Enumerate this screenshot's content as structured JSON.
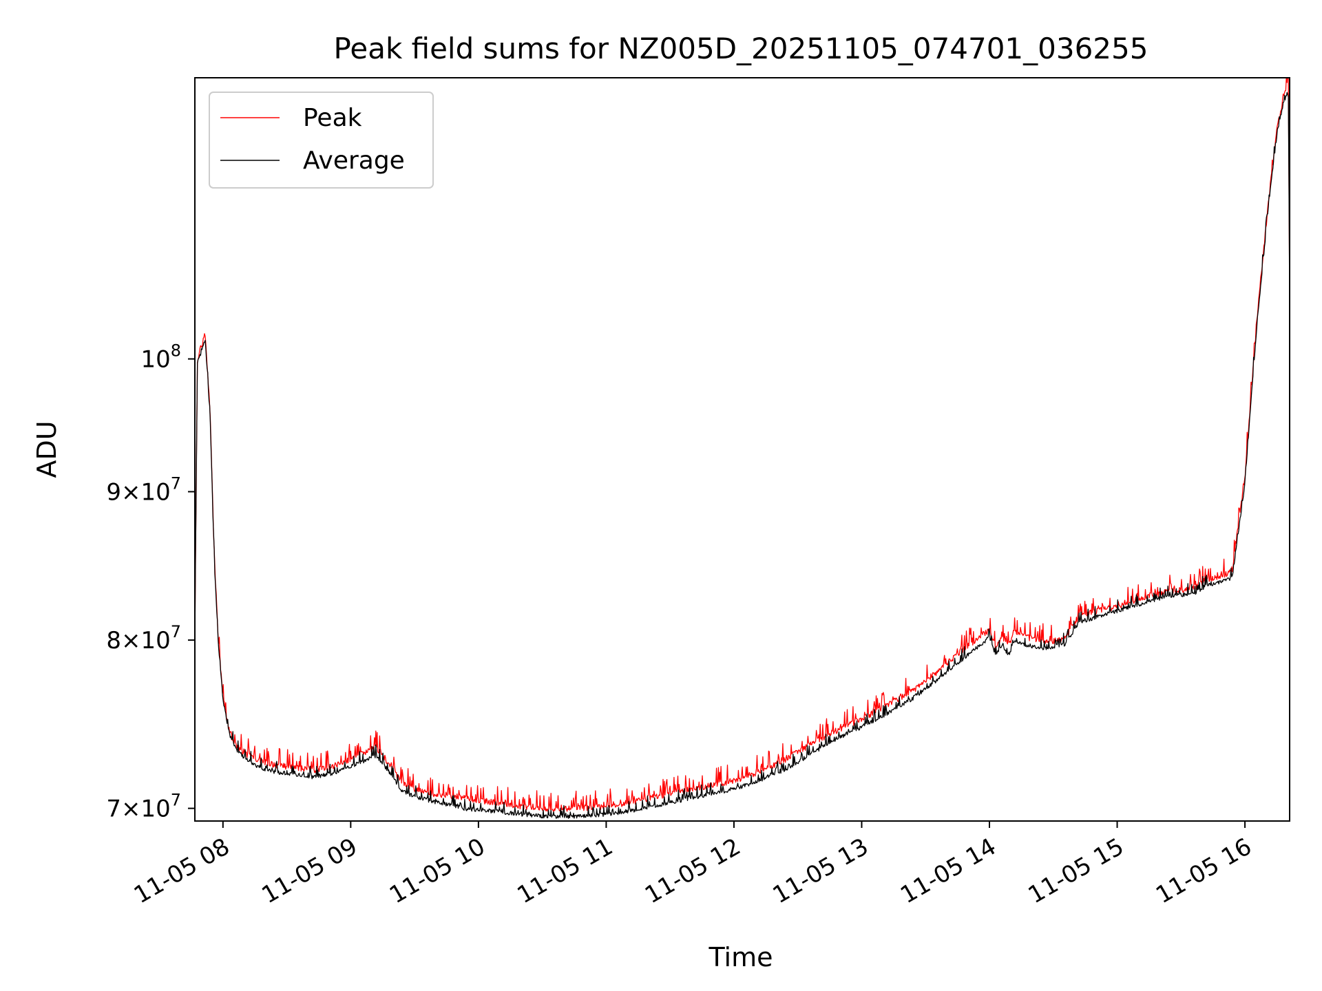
{
  "chart_data": {
    "type": "line",
    "title": "Peak field sums for NZ005D_20251105_074701_036255",
    "xlabel": "Time",
    "ylabel": "ADU",
    "yscale": "log",
    "xlim": [
      7.78,
      16.35
    ],
    "ylim": [
      69300000,
      125000000
    ],
    "grid": true,
    "legend_position": "top-left",
    "x_ticks": [
      {
        "value": 8,
        "label": "11-05 08"
      },
      {
        "value": 9,
        "label": "11-05 09"
      },
      {
        "value": 10,
        "label": "11-05 10"
      },
      {
        "value": 11,
        "label": "11-05 11"
      },
      {
        "value": 12,
        "label": "11-05 12"
      },
      {
        "value": 13,
        "label": "11-05 13"
      },
      {
        "value": 14,
        "label": "11-05 14"
      },
      {
        "value": 15,
        "label": "11-05 15"
      },
      {
        "value": 16,
        "label": "11-05 16"
      }
    ],
    "y_ticks": [
      {
        "value": 70000000,
        "mantissa": "7",
        "base": "10",
        "exponent": "7"
      },
      {
        "value": 80000000,
        "mantissa": "8",
        "base": "10",
        "exponent": "7"
      },
      {
        "value": 90000000,
        "mantissa": "9",
        "base": "10",
        "exponent": "7"
      },
      {
        "value": 100000000,
        "mantissa": "",
        "base": "10",
        "exponent": "8"
      }
    ],
    "series": [
      {
        "name": "Peak",
        "color": "#ff0000",
        "noise": 0.006,
        "x": [
          7.78,
          7.8,
          7.83,
          7.86,
          7.9,
          7.93,
          7.96,
          8.0,
          8.05,
          8.1,
          8.2,
          8.3,
          8.4,
          8.5,
          8.6,
          8.7,
          8.8,
          8.9,
          9.0,
          9.1,
          9.2,
          9.3,
          9.4,
          9.5,
          9.6,
          9.7,
          9.8,
          9.9,
          10.0,
          10.2,
          10.4,
          10.6,
          10.8,
          11.0,
          11.2,
          11.4,
          11.6,
          11.8,
          12.0,
          12.2,
          12.4,
          12.6,
          12.8,
          13.0,
          13.2,
          13.4,
          13.6,
          13.8,
          14.0,
          14.05,
          14.1,
          14.15,
          14.2,
          14.3,
          14.4,
          14.5,
          14.6,
          14.7,
          14.8,
          15.0,
          15.2,
          15.4,
          15.6,
          15.7,
          15.8,
          15.9,
          16.0,
          16.1,
          16.2,
          16.25,
          16.3,
          16.33,
          16.34,
          16.35
        ],
        "y": [
          80000000,
          100000000,
          101000000,
          102000000,
          96000000,
          86000000,
          80500000,
          76500000,
          74500000,
          73600000,
          73000000,
          72700000,
          72500000,
          72400000,
          72300000,
          72200000,
          72300000,
          72500000,
          72800000,
          73200000,
          73500000,
          72500000,
          71500000,
          71100000,
          70900000,
          70800000,
          70700000,
          70600000,
          70500000,
          70300000,
          70100000,
          70000000,
          70050000,
          70150000,
          70400000,
          70700000,
          71000000,
          71300000,
          71600000,
          72100000,
          72800000,
          73700000,
          74500000,
          75200000,
          76000000,
          76900000,
          78100000,
          79500000,
          80700000,
          79500000,
          80200000,
          79700000,
          80600000,
          80200000,
          80000000,
          80000000,
          80200000,
          81600000,
          81800000,
          82200000,
          82800000,
          83200000,
          83400000,
          84000000,
          84200000,
          84500000,
          91000000,
          104000000,
          115000000,
          120000000,
          123000000,
          124500000,
          124000000,
          105000000
        ]
      },
      {
        "name": "Average",
        "color": "#000000",
        "noise": 0.004,
        "x": [
          7.78,
          7.8,
          7.83,
          7.86,
          7.9,
          7.93,
          7.96,
          8.0,
          8.05,
          8.1,
          8.2,
          8.3,
          8.4,
          8.5,
          8.6,
          8.7,
          8.8,
          8.9,
          9.0,
          9.1,
          9.2,
          9.3,
          9.4,
          9.5,
          9.6,
          9.7,
          9.8,
          9.9,
          10.0,
          10.2,
          10.4,
          10.6,
          10.8,
          11.0,
          11.2,
          11.4,
          11.6,
          11.8,
          12.0,
          12.2,
          12.4,
          12.6,
          12.8,
          13.0,
          13.2,
          13.4,
          13.6,
          13.8,
          14.0,
          14.05,
          14.1,
          14.15,
          14.2,
          14.3,
          14.4,
          14.5,
          14.6,
          14.7,
          14.8,
          15.0,
          15.2,
          15.4,
          15.6,
          15.7,
          15.8,
          15.9,
          16.0,
          16.1,
          16.2,
          16.25,
          16.3,
          16.33,
          16.34,
          16.35
        ],
        "y": [
          79500000,
          99800000,
          100500000,
          101500000,
          95500000,
          85500000,
          80200000,
          76300000,
          74300000,
          73400000,
          72700000,
          72300000,
          72100000,
          72000000,
          71900000,
          71800000,
          71900000,
          72100000,
          72400000,
          72700000,
          73000000,
          72100000,
          71000000,
          70700000,
          70500000,
          70300000,
          70200000,
          70000000,
          69950000,
          69800000,
          69650000,
          69550000,
          69600000,
          69700000,
          69900000,
          70200000,
          70500000,
          70800000,
          71100000,
          71600000,
          72200000,
          73100000,
          74000000,
          74700000,
          75500000,
          76400000,
          77600000,
          78900000,
          80200000,
          79000000,
          79700000,
          79100000,
          80000000,
          79700000,
          79500000,
          79600000,
          79800000,
          81200000,
          81400000,
          81900000,
          82400000,
          82900000,
          83000000,
          83600000,
          83800000,
          84100000,
          90500000,
          103500000,
          114500000,
          119500000,
          122500000,
          123500000,
          123000000,
          104000000
        ]
      }
    ]
  }
}
